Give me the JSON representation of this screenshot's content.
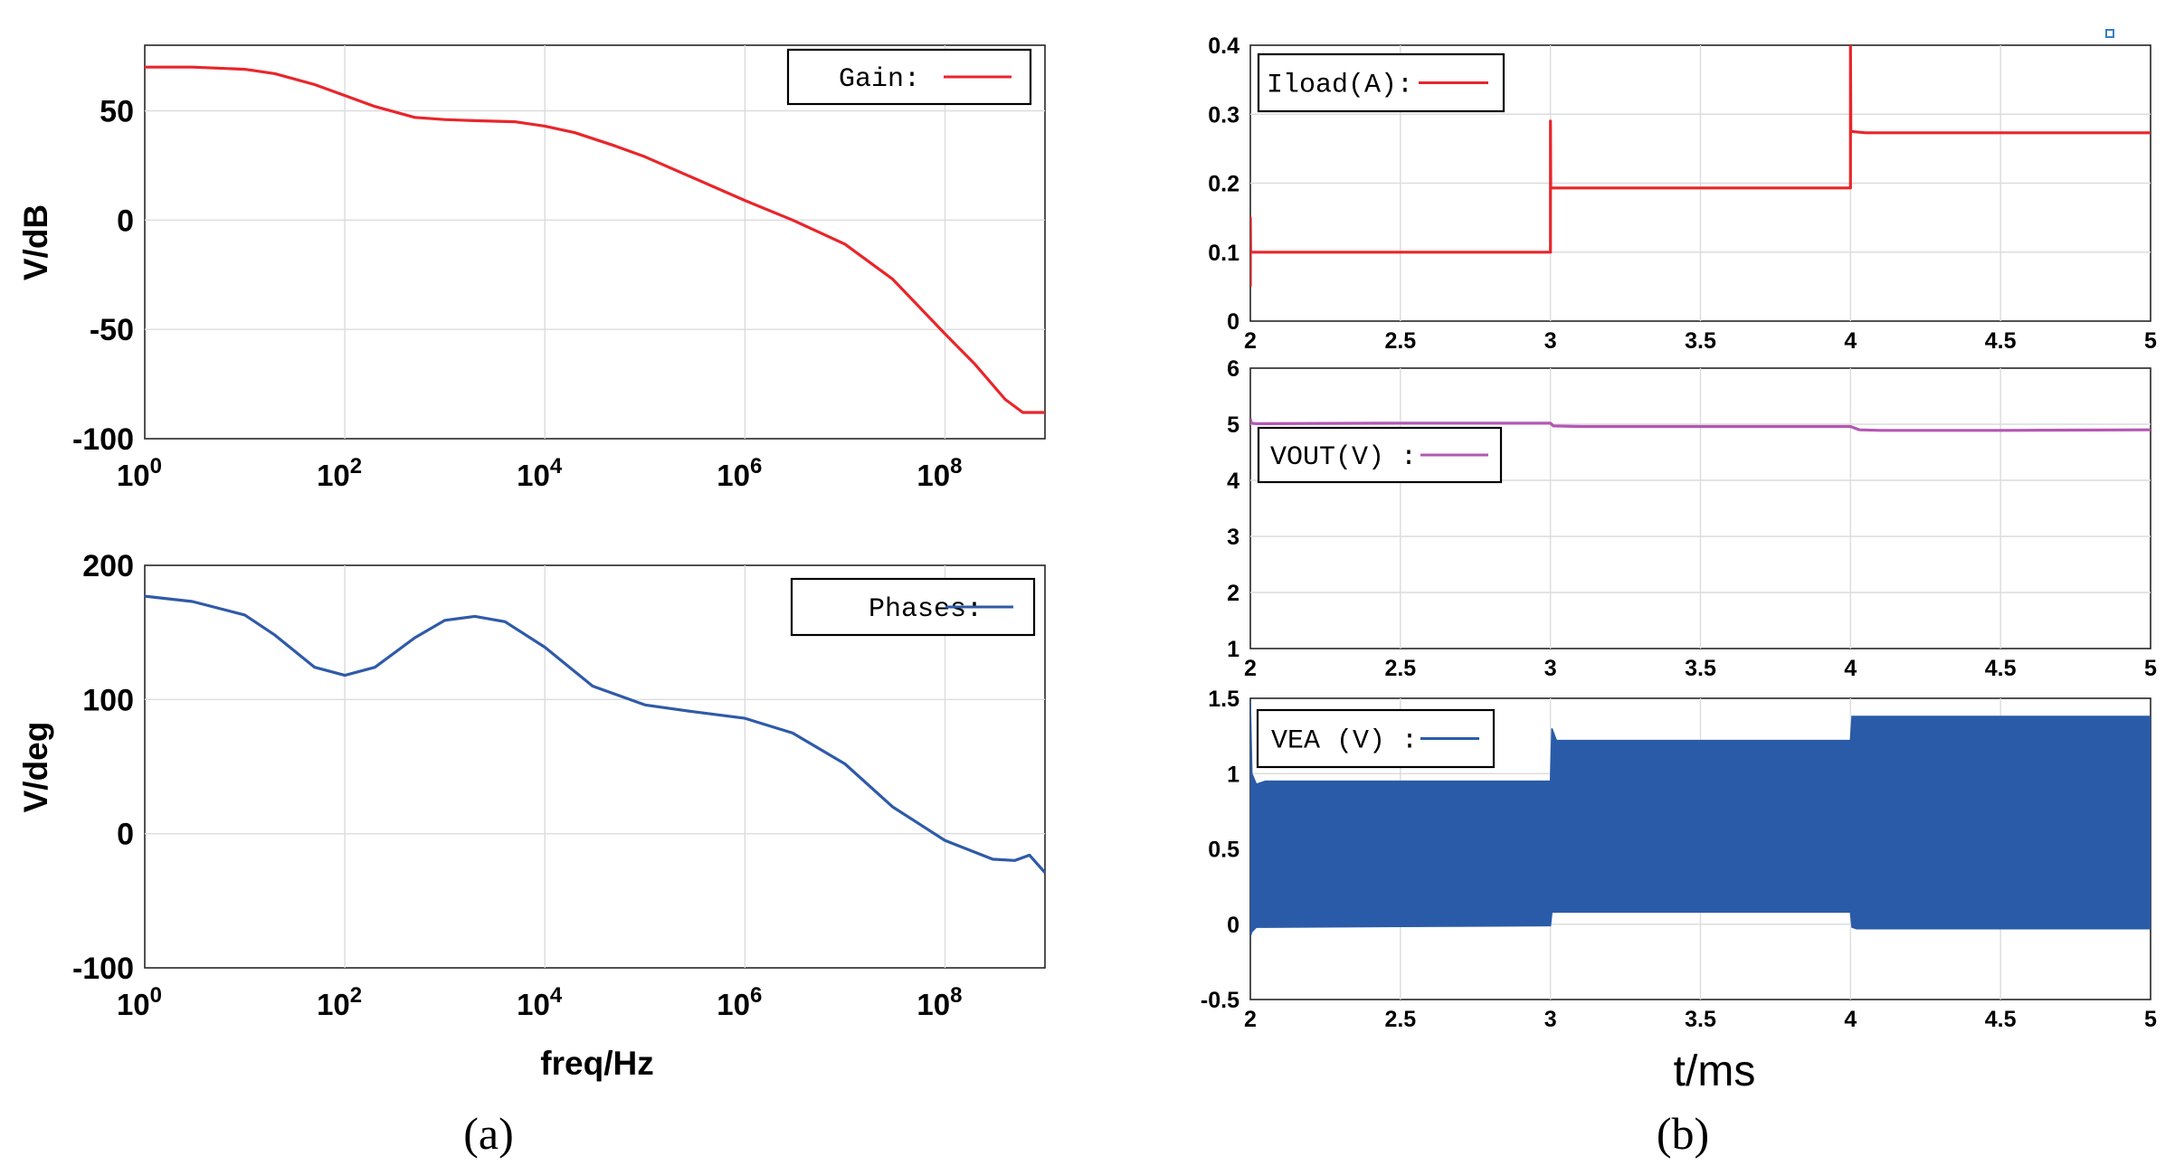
{
  "panels": {
    "a": {
      "caption": "(a)",
      "x_label": "freq/Hz",
      "tick_base": "10",
      "tick_exponents": [
        "0",
        "2",
        "4",
        "6",
        "8"
      ]
    },
    "b": {
      "caption": "(b)",
      "x_label": "t/ms"
    }
  },
  "colors": {
    "gain": "#e8262b",
    "phases": "#2f5aa8",
    "iload": "#e8262b",
    "vout": "#b457b4",
    "vea": "#2a5ba8"
  },
  "chart_data": [
    {
      "id": "gain",
      "type": "line",
      "xscale": "log",
      "xlim": [
        1,
        1000000000
      ],
      "ylim": [
        -100,
        80
      ],
      "xticks": [
        1,
        100,
        10000,
        1000000,
        100000000
      ],
      "yticks": [
        "-100",
        "-50",
        "0",
        "50"
      ],
      "ytick_values": [
        -100,
        -50,
        0,
        50
      ],
      "ylabel": "V/dB",
      "grid": true,
      "legend_position": "top-right",
      "series": [
        {
          "name": "Gain:",
          "color": "#e8262b",
          "x": [
            1,
            3,
            10,
            20,
            50,
            100,
            200,
            500,
            1000,
            2000,
            5000,
            10000,
            20000,
            50000,
            100000,
            1000000,
            3000000,
            10000000,
            30000000,
            100000000,
            200000000,
            400000000,
            600000000,
            1000000000
          ],
          "y": [
            70,
            70,
            69,
            67,
            62,
            57,
            52,
            47,
            46,
            45.5,
            45,
            43,
            40,
            34,
            29,
            9,
            0,
            -11,
            -27,
            -52,
            -66,
            -82,
            -88,
            -88
          ]
        }
      ]
    },
    {
      "id": "phase",
      "type": "line",
      "xscale": "log",
      "xlim": [
        1,
        1000000000
      ],
      "ylim": [
        -100,
        200
      ],
      "xticks": [
        1,
        100,
        10000,
        1000000,
        100000000
      ],
      "yticks": [
        "-100",
        "0",
        "100",
        "200"
      ],
      "ytick_values": [
        -100,
        0,
        100,
        200
      ],
      "xlabel": "freq/Hz",
      "ylabel": "V/deg",
      "grid": true,
      "legend_position": "top-right",
      "series": [
        {
          "name": "Phases:",
          "color": "#2f5aa8",
          "x": [
            1,
            3,
            10,
            20,
            50,
            100,
            200,
            500,
            1000,
            2000,
            4000,
            10000,
            30000,
            100000,
            300000,
            1000000,
            3000000,
            10000000,
            30000000,
            100000000,
            300000000,
            500000000,
            700000000,
            1000000000
          ],
          "y": [
            177,
            173,
            163,
            148,
            124,
            118,
            124,
            146,
            159,
            162,
            158,
            139,
            110,
            96,
            91,
            86,
            75,
            52,
            20,
            -5,
            -19,
            -20,
            -16,
            -29
          ]
        }
      ]
    },
    {
      "id": "iload",
      "type": "line",
      "xlim": [
        2,
        5
      ],
      "ylim": [
        0,
        0.4
      ],
      "xticks": [
        "2",
        "2.5",
        "3",
        "3.5",
        "4",
        "4.5",
        "5"
      ],
      "xtick_values": [
        2,
        2.5,
        3,
        3.5,
        4,
        4.5,
        5
      ],
      "yticks": [
        "0",
        "0.1",
        "0.2",
        "0.3",
        "0.4"
      ],
      "ytick_values": [
        0,
        0.1,
        0.2,
        0.3,
        0.4
      ],
      "grid": true,
      "legend_position": "top-left",
      "series": [
        {
          "name": "Iload(A):",
          "color": "#e8262b",
          "x": [
            2.0,
            2.0,
            2.001,
            2.003,
            2.01,
            3.0,
            3.0,
            3.001,
            3.003,
            3.01,
            4.0,
            4.0,
            4.001,
            4.003,
            4.05,
            5.0
          ],
          "y": [
            0.05,
            0.15,
            0.1,
            0.1,
            0.1,
            0.1,
            0.29,
            0.195,
            0.193,
            0.193,
            0.193,
            0.4,
            0.276,
            0.275,
            0.273,
            0.273
          ]
        }
      ]
    },
    {
      "id": "vout",
      "type": "line",
      "xlim": [
        2,
        5
      ],
      "ylim": [
        1,
        6
      ],
      "xticks": [
        "2",
        "2.5",
        "3",
        "3.5",
        "4",
        "4.5",
        "5"
      ],
      "xtick_values": [
        2,
        2.5,
        3,
        3.5,
        4,
        4.5,
        5
      ],
      "yticks": [
        "1",
        "2",
        "3",
        "4",
        "5",
        "6"
      ],
      "ytick_values": [
        1,
        2,
        3,
        4,
        5,
        6
      ],
      "grid": true,
      "legend_position": "middle-left",
      "series": [
        {
          "name": "VOUT(V) :",
          "color": "#b457b4",
          "x": [
            2.0,
            2.003,
            2.02,
            2.5,
            3.0,
            3.01,
            3.1,
            3.5,
            4.0,
            4.03,
            4.1,
            4.5,
            5.0
          ],
          "y": [
            5.1,
            5.02,
            5.01,
            5.02,
            5.02,
            4.97,
            4.96,
            4.96,
            4.96,
            4.9,
            4.89,
            4.89,
            4.9
          ]
        }
      ]
    },
    {
      "id": "vea",
      "type": "area",
      "xlim": [
        2,
        5
      ],
      "ylim": [
        -0.5,
        1.5
      ],
      "xticks": [
        "2",
        "2.5",
        "3",
        "3.5",
        "4",
        "4.5",
        "5"
      ],
      "xtick_values": [
        2,
        2.5,
        3,
        3.5,
        4,
        4.5,
        5
      ],
      "yticks": [
        "-0.5",
        "0",
        "0.5",
        "1",
        "1.5"
      ],
      "ytick_values": [
        -0.5,
        0,
        0.5,
        1,
        1.5
      ],
      "xlabel": "t/ms",
      "grid": true,
      "legend_position": "top-left",
      "series": [
        {
          "name": "VEA (V) :",
          "color": "#2a5ba8",
          "x": [
            2.0,
            2.005,
            2.02,
            2.05,
            3.0,
            3.005,
            3.02,
            4.0,
            4.005,
            4.02,
            5.0
          ],
          "upper": [
            1.48,
            1.0,
            0.93,
            0.95,
            0.95,
            1.3,
            1.22,
            1.22,
            1.38,
            1.38,
            1.38
          ],
          "lower": [
            -0.08,
            -0.05,
            -0.02,
            -0.02,
            -0.01,
            0.08,
            0.08,
            0.08,
            -0.02,
            -0.03,
            -0.03
          ]
        }
      ]
    }
  ]
}
